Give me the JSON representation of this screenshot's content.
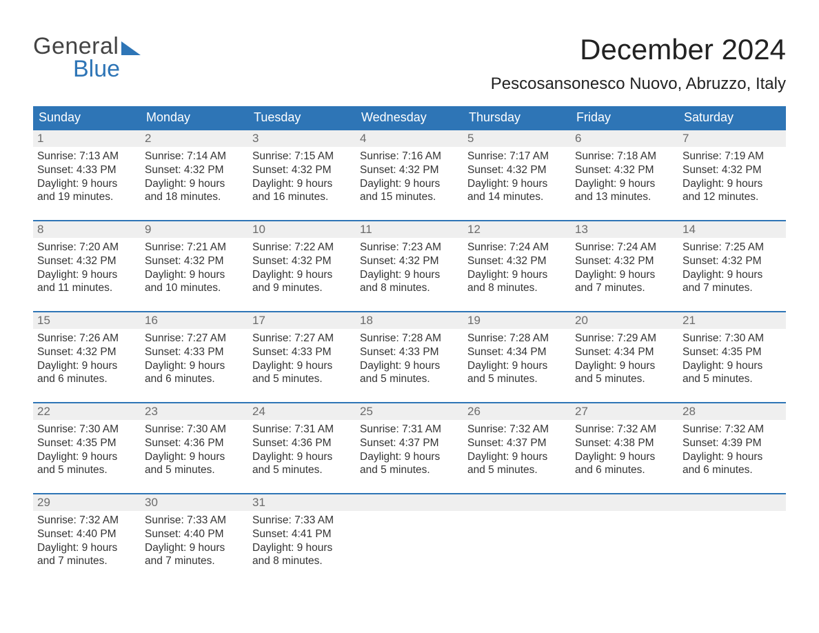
{
  "brand": {
    "general": "General",
    "blue": "Blue"
  },
  "title": "December 2024",
  "location": "Pescosansonesco Nuovo, Abruzzo, Italy",
  "colors": {
    "accent": "#2e75b6",
    "header_bg": "#2e75b6",
    "header_text": "#ffffff",
    "daynum_bg": "#efefef",
    "daynum_text": "#6b6b6b",
    "body_text": "#333333",
    "page_bg": "#ffffff"
  },
  "weekdays": [
    "Sunday",
    "Monday",
    "Tuesday",
    "Wednesday",
    "Thursday",
    "Friday",
    "Saturday"
  ],
  "labels": {
    "sunrise": "Sunrise:",
    "sunset": "Sunset:",
    "daylight_prefix": "Daylight:"
  },
  "weeks": [
    [
      {
        "n": "1",
        "sunrise": "7:13 AM",
        "sunset": "4:33 PM",
        "daylight": "9 hours and 19 minutes."
      },
      {
        "n": "2",
        "sunrise": "7:14 AM",
        "sunset": "4:32 PM",
        "daylight": "9 hours and 18 minutes."
      },
      {
        "n": "3",
        "sunrise": "7:15 AM",
        "sunset": "4:32 PM",
        "daylight": "9 hours and 16 minutes."
      },
      {
        "n": "4",
        "sunrise": "7:16 AM",
        "sunset": "4:32 PM",
        "daylight": "9 hours and 15 minutes."
      },
      {
        "n": "5",
        "sunrise": "7:17 AM",
        "sunset": "4:32 PM",
        "daylight": "9 hours and 14 minutes."
      },
      {
        "n": "6",
        "sunrise": "7:18 AM",
        "sunset": "4:32 PM",
        "daylight": "9 hours and 13 minutes."
      },
      {
        "n": "7",
        "sunrise": "7:19 AM",
        "sunset": "4:32 PM",
        "daylight": "9 hours and 12 minutes."
      }
    ],
    [
      {
        "n": "8",
        "sunrise": "7:20 AM",
        "sunset": "4:32 PM",
        "daylight": "9 hours and 11 minutes."
      },
      {
        "n": "9",
        "sunrise": "7:21 AM",
        "sunset": "4:32 PM",
        "daylight": "9 hours and 10 minutes."
      },
      {
        "n": "10",
        "sunrise": "7:22 AM",
        "sunset": "4:32 PM",
        "daylight": "9 hours and 9 minutes."
      },
      {
        "n": "11",
        "sunrise": "7:23 AM",
        "sunset": "4:32 PM",
        "daylight": "9 hours and 8 minutes."
      },
      {
        "n": "12",
        "sunrise": "7:24 AM",
        "sunset": "4:32 PM",
        "daylight": "9 hours and 8 minutes."
      },
      {
        "n": "13",
        "sunrise": "7:24 AM",
        "sunset": "4:32 PM",
        "daylight": "9 hours and 7 minutes."
      },
      {
        "n": "14",
        "sunrise": "7:25 AM",
        "sunset": "4:32 PM",
        "daylight": "9 hours and 7 minutes."
      }
    ],
    [
      {
        "n": "15",
        "sunrise": "7:26 AM",
        "sunset": "4:32 PM",
        "daylight": "9 hours and 6 minutes."
      },
      {
        "n": "16",
        "sunrise": "7:27 AM",
        "sunset": "4:33 PM",
        "daylight": "9 hours and 6 minutes."
      },
      {
        "n": "17",
        "sunrise": "7:27 AM",
        "sunset": "4:33 PM",
        "daylight": "9 hours and 5 minutes."
      },
      {
        "n": "18",
        "sunrise": "7:28 AM",
        "sunset": "4:33 PM",
        "daylight": "9 hours and 5 minutes."
      },
      {
        "n": "19",
        "sunrise": "7:28 AM",
        "sunset": "4:34 PM",
        "daylight": "9 hours and 5 minutes."
      },
      {
        "n": "20",
        "sunrise": "7:29 AM",
        "sunset": "4:34 PM",
        "daylight": "9 hours and 5 minutes."
      },
      {
        "n": "21",
        "sunrise": "7:30 AM",
        "sunset": "4:35 PM",
        "daylight": "9 hours and 5 minutes."
      }
    ],
    [
      {
        "n": "22",
        "sunrise": "7:30 AM",
        "sunset": "4:35 PM",
        "daylight": "9 hours and 5 minutes."
      },
      {
        "n": "23",
        "sunrise": "7:30 AM",
        "sunset": "4:36 PM",
        "daylight": "9 hours and 5 minutes."
      },
      {
        "n": "24",
        "sunrise": "7:31 AM",
        "sunset": "4:36 PM",
        "daylight": "9 hours and 5 minutes."
      },
      {
        "n": "25",
        "sunrise": "7:31 AM",
        "sunset": "4:37 PM",
        "daylight": "9 hours and 5 minutes."
      },
      {
        "n": "26",
        "sunrise": "7:32 AM",
        "sunset": "4:37 PM",
        "daylight": "9 hours and 5 minutes."
      },
      {
        "n": "27",
        "sunrise": "7:32 AM",
        "sunset": "4:38 PM",
        "daylight": "9 hours and 6 minutes."
      },
      {
        "n": "28",
        "sunrise": "7:32 AM",
        "sunset": "4:39 PM",
        "daylight": "9 hours and 6 minutes."
      }
    ],
    [
      {
        "n": "29",
        "sunrise": "7:32 AM",
        "sunset": "4:40 PM",
        "daylight": "9 hours and 7 minutes."
      },
      {
        "n": "30",
        "sunrise": "7:33 AM",
        "sunset": "4:40 PM",
        "daylight": "9 hours and 7 minutes."
      },
      {
        "n": "31",
        "sunrise": "7:33 AM",
        "sunset": "4:41 PM",
        "daylight": "9 hours and 8 minutes."
      },
      null,
      null,
      null,
      null
    ]
  ]
}
